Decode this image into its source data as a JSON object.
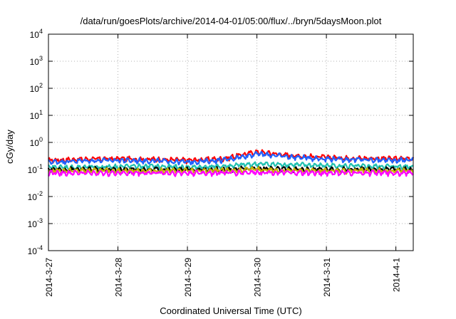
{
  "chart_data": {
    "type": "line",
    "title": "/data/run/goesPlots/archive/2014-04-01/05:00/flux/../bryn/5daysMoon.plot",
    "xlabel": "Coordinated Universal Time (UTC)",
    "ylabel": "cGy/day",
    "yscale": "log",
    "ylim": [
      0.0001,
      10000
    ],
    "xlim": [
      "2014-3-27",
      "2014-4-1 06:00"
    ],
    "grid": true,
    "x_ticks": [
      "2014-3-27",
      "2014-3-28",
      "2014-3-29",
      "2014-3-30",
      "2014-3-31",
      "2014-4-1"
    ],
    "y_ticks": [
      {
        "base": "10",
        "exp": "4"
      },
      {
        "base": "10",
        "exp": "3"
      },
      {
        "base": "10",
        "exp": "2"
      },
      {
        "base": "10",
        "exp": "1"
      },
      {
        "base": "10",
        "exp": "0"
      },
      {
        "base": "10",
        "exp": "-1"
      },
      {
        "base": "10",
        "exp": "-2"
      },
      {
        "base": "10",
        "exp": "-3"
      },
      {
        "base": "10",
        "exp": "-4"
      }
    ],
    "x": [
      "2014-3-27 00:00",
      "2014-3-27 12:00",
      "2014-3-28 00:00",
      "2014-3-28 12:00",
      "2014-3-29 00:00",
      "2014-3-29 12:00",
      "2014-3-30 00:00",
      "2014-3-30 12:00",
      "2014-3-31 00:00",
      "2014-3-31 12:00",
      "2014-4-1 00:00",
      "2014-4-1 06:00"
    ],
    "series": [
      {
        "color": "#ff0000",
        "values": [
          0.22,
          0.24,
          0.25,
          0.24,
          0.22,
          0.25,
          0.45,
          0.33,
          0.28,
          0.26,
          0.25,
          0.26
        ]
      },
      {
        "color": "#2060ff",
        "values": [
          0.19,
          0.21,
          0.22,
          0.21,
          0.19,
          0.22,
          0.38,
          0.29,
          0.25,
          0.23,
          0.22,
          0.23
        ]
      },
      {
        "color": "#20c0b0",
        "values": [
          0.12,
          0.12,
          0.13,
          0.13,
          0.12,
          0.13,
          0.16,
          0.15,
          0.14,
          0.13,
          0.13,
          0.13
        ]
      },
      {
        "color": "#000000",
        "values": [
          0.1,
          0.1,
          0.1,
          0.1,
          0.1,
          0.1,
          0.11,
          0.1,
          0.1,
          0.1,
          0.1,
          0.1
        ]
      },
      {
        "color": "#c8b000",
        "values": [
          0.09,
          0.09,
          0.09,
          0.09,
          0.09,
          0.09,
          0.1,
          0.09,
          0.09,
          0.09,
          0.09,
          0.09
        ]
      },
      {
        "color": "#ff00ff",
        "values": [
          0.075,
          0.075,
          0.075,
          0.075,
          0.075,
          0.075,
          0.08,
          0.075,
          0.075,
          0.075,
          0.075,
          0.075
        ]
      }
    ]
  }
}
